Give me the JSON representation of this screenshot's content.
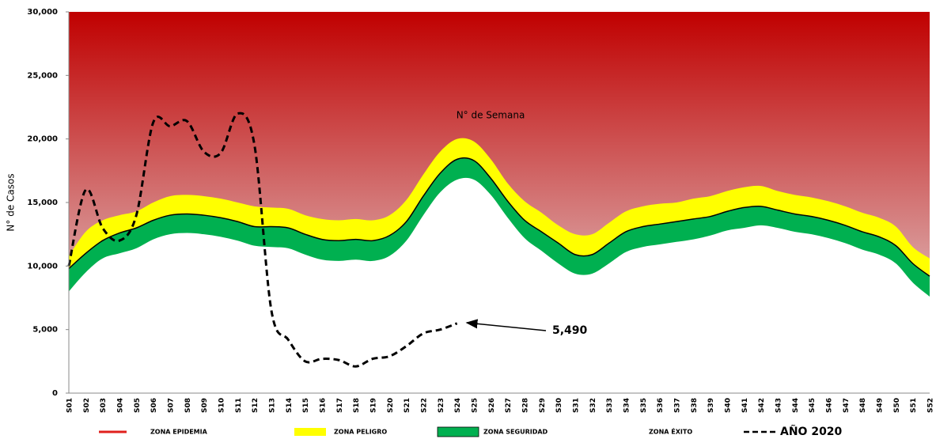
{
  "chart_data": {
    "type": "endemic-channel",
    "x_label": "N° de Semana",
    "y_label": "N° de Casos",
    "categories": [
      "S01",
      "S02",
      "S03",
      "S04",
      "S05",
      "S06",
      "S07",
      "S08",
      "S09",
      "S10",
      "S11",
      "S12",
      "S13",
      "S14",
      "S15",
      "S16",
      "S17",
      "S18",
      "S19",
      "S20",
      "S21",
      "S22",
      "S23",
      "S24",
      "S25",
      "S26",
      "S27",
      "S28",
      "S29",
      "S30",
      "S31",
      "S32",
      "S33",
      "S34",
      "S35",
      "S36",
      "S37",
      "S38",
      "S39",
      "S40",
      "S41",
      "S42",
      "S43",
      "S44",
      "S45",
      "S46",
      "S47",
      "S48",
      "S49",
      "S50",
      "S51",
      "S52"
    ],
    "ylim": [
      0,
      30000
    ],
    "yticks": [
      0,
      {
        "value": 5000,
        "label": "5,000"
      },
      {
        "value": 10000,
        "label": "10,000"
      },
      {
        "value": 15000,
        "label": "15,000"
      },
      {
        "value": 20000,
        "label": "20,000"
      },
      {
        "value": 25000,
        "label": "25,000"
      },
      {
        "value": 30000,
        "label": "30,000"
      }
    ],
    "series": [
      {
        "name": "ZONA EPIDEMIA",
        "color": "#e0201c"
      },
      {
        "name": "ZONA PELIGRO",
        "color": "#ffff00",
        "values": [
          10800,
          12700,
          13600,
          14000,
          14300,
          15000,
          15500,
          15600,
          15500,
          15300,
          15000,
          14700,
          14600,
          14500,
          14000,
          13700,
          13600,
          13700,
          13600,
          14000,
          15200,
          17200,
          19000,
          20000,
          19800,
          18400,
          16500,
          15100,
          14200,
          13200,
          12500,
          12500,
          13400,
          14300,
          14700,
          14900,
          15000,
          15300,
          15500,
          15900,
          16200,
          16300,
          15900,
          15600,
          15400,
          15100,
          14700,
          14200,
          13800,
          13100,
          11500,
          10600
        ]
      },
      {
        "name": "ZONA SEGURIDAD",
        "color": "#00b050",
        "values": [
          9800,
          11000,
          12000,
          12600,
          13000,
          13600,
          14000,
          14100,
          14000,
          13800,
          13500,
          13100,
          13100,
          13000,
          12500,
          12100,
          12000,
          12100,
          12000,
          12400,
          13500,
          15500,
          17300,
          18400,
          18300,
          16900,
          15100,
          13600,
          12700,
          11800,
          10900,
          10900,
          11800,
          12700,
          13100,
          13300,
          13500,
          13700,
          13900,
          14300,
          14600,
          14700,
          14400,
          14100,
          13900,
          13600,
          13200,
          12700,
          12300,
          11600,
          10200,
          9200
        ]
      },
      {
        "name": "ZONA ÉXITO",
        "color": "#ffffff",
        "values": [
          8000,
          9500,
          10600,
          11000,
          11400,
          12100,
          12500,
          12600,
          12500,
          12300,
          12000,
          11600,
          11500,
          11400,
          10900,
          10500,
          10400,
          10500,
          10400,
          10800,
          12000,
          14000,
          15800,
          16800,
          16800,
          15600,
          13800,
          12200,
          11200,
          10200,
          9400,
          9400,
          10200,
          11100,
          11500,
          11700,
          11900,
          12100,
          12400,
          12800,
          13000,
          13200,
          13000,
          12700,
          12500,
          12200,
          11800,
          11300,
          10900,
          10200,
          8700,
          7600
        ]
      },
      {
        "name": "AÑO 2020",
        "color": "#000000",
        "values": [
          10000,
          16000,
          13000,
          12000,
          14000,
          21300,
          21000,
          21400,
          19000,
          18900,
          22000,
          19500,
          6500,
          4200,
          2500,
          2700,
          2600,
          2100,
          2700,
          2900,
          3700,
          4700,
          5000,
          5490,
          null,
          null,
          null,
          null,
          null,
          null,
          null,
          null,
          null,
          null,
          null,
          null,
          null,
          null,
          null,
          null,
          null,
          null,
          null,
          null,
          null,
          null,
          null,
          null,
          null,
          null,
          null,
          null
        ]
      }
    ],
    "annotation": "5,490"
  }
}
